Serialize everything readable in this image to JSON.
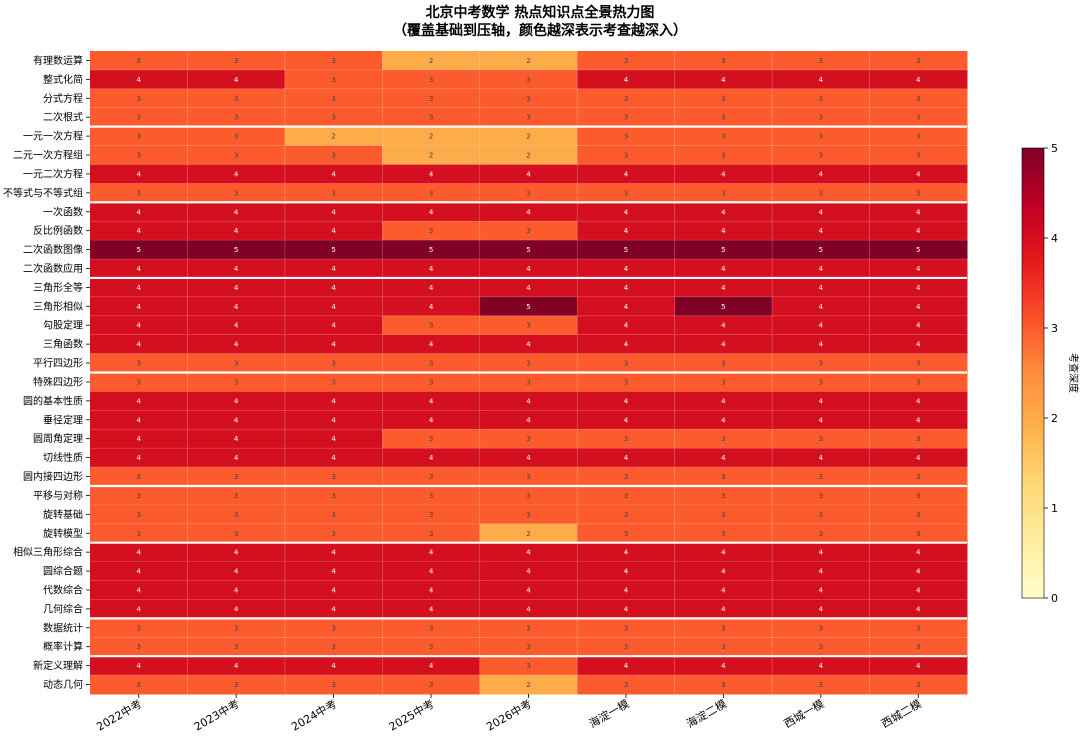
{
  "chart_data": {
    "type": "heatmap",
    "title": "北京中考数学 热点知识点全景热力图",
    "subtitle": "（覆盖基础到压轴，颜色越深表示考查越深入）",
    "colorbar_label": "考查深度",
    "value_range": [
      0,
      5
    ],
    "colorbar_ticks": [
      0,
      1,
      2,
      3,
      4,
      5
    ],
    "colormap": [
      "#ffffcc",
      "#ffeda0",
      "#fed976",
      "#feb24c",
      "#fd8d3c",
      "#fc4e2a",
      "#e31a1c",
      "#bd0026",
      "#800026"
    ],
    "columns": [
      "2022中考",
      "2023中考",
      "2024中考",
      "2025中考",
      "2026中考",
      "海淀一模",
      "海淀二模",
      "西城一模",
      "西城二模"
    ],
    "rows": [
      "有理数运算",
      "整式化简",
      "分式方程",
      "二次根式",
      "一元一次方程",
      "二元一次方程组",
      "一元二次方程",
      "不等式与不等式组",
      "一次函数",
      "反比例函数",
      "二次函数图像",
      "二次函数应用",
      "三角形全等",
      "三角形相似",
      "勾股定理",
      "三角函数",
      "平行四边形",
      "特殊四边形",
      "圆的基本性质",
      "垂径定理",
      "圆周角定理",
      "切线性质",
      "圆内接四边形",
      "平移与对称",
      "旋转基础",
      "旋转模型",
      "相似三角形综合",
      "圆综合题",
      "代数综合",
      "几何综合",
      "数据统计",
      "概率计算",
      "新定义理解",
      "动态几何"
    ],
    "group_separators_after_row": [
      3,
      7,
      11,
      16,
      22,
      25,
      29,
      31
    ],
    "values": [
      [
        3,
        3,
        3,
        2,
        2,
        3,
        3,
        3,
        3
      ],
      [
        4,
        4,
        3,
        3,
        3,
        4,
        4,
        4,
        4
      ],
      [
        3,
        3,
        3,
        3,
        3,
        3,
        3,
        3,
        3
      ],
      [
        3,
        3,
        3,
        3,
        3,
        3,
        3,
        3,
        3
      ],
      [
        3,
        3,
        2,
        2,
        2,
        3,
        3,
        3,
        3
      ],
      [
        3,
        3,
        3,
        2,
        2,
        3,
        3,
        3,
        3
      ],
      [
        4,
        4,
        4,
        4,
        4,
        4,
        4,
        4,
        4
      ],
      [
        3,
        3,
        3,
        3,
        3,
        3,
        3,
        3,
        3
      ],
      [
        4,
        4,
        4,
        4,
        4,
        4,
        4,
        4,
        4
      ],
      [
        4,
        4,
        4,
        3,
        3,
        4,
        4,
        4,
        4
      ],
      [
        5,
        5,
        5,
        5,
        5,
        5,
        5,
        5,
        5
      ],
      [
        4,
        4,
        4,
        4,
        4,
        4,
        4,
        4,
        4
      ],
      [
        4,
        4,
        4,
        4,
        4,
        4,
        4,
        4,
        4
      ],
      [
        4,
        4,
        4,
        4,
        5,
        4,
        5,
        4,
        4
      ],
      [
        4,
        4,
        4,
        3,
        3,
        4,
        4,
        4,
        4
      ],
      [
        4,
        4,
        4,
        4,
        4,
        4,
        4,
        4,
        4
      ],
      [
        3,
        3,
        3,
        3,
        3,
        3,
        3,
        3,
        3
      ],
      [
        3,
        3,
        3,
        3,
        3,
        3,
        3,
        3,
        3
      ],
      [
        4,
        4,
        4,
        4,
        4,
        4,
        4,
        4,
        4
      ],
      [
        4,
        4,
        4,
        4,
        4,
        4,
        4,
        4,
        4
      ],
      [
        4,
        4,
        4,
        3,
        3,
        3,
        3,
        3,
        3
      ],
      [
        4,
        4,
        4,
        4,
        4,
        4,
        4,
        4,
        4
      ],
      [
        3,
        3,
        3,
        3,
        3,
        3,
        3,
        3,
        3
      ],
      [
        3,
        3,
        3,
        3,
        3,
        3,
        3,
        3,
        3
      ],
      [
        3,
        3,
        3,
        3,
        3,
        3,
        3,
        3,
        3
      ],
      [
        3,
        3,
        3,
        3,
        2,
        3,
        3,
        3,
        3
      ],
      [
        4,
        4,
        4,
        4,
        4,
        4,
        4,
        4,
        4
      ],
      [
        4,
        4,
        4,
        4,
        4,
        4,
        4,
        4,
        4
      ],
      [
        4,
        4,
        4,
        4,
        4,
        4,
        4,
        4,
        4
      ],
      [
        4,
        4,
        4,
        4,
        4,
        4,
        4,
        4,
        4
      ],
      [
        3,
        3,
        3,
        3,
        3,
        3,
        3,
        3,
        3
      ],
      [
        3,
        3,
        3,
        3,
        3,
        3,
        3,
        3,
        3
      ],
      [
        4,
        4,
        4,
        4,
        3,
        4,
        4,
        4,
        4
      ],
      [
        3,
        3,
        3,
        3,
        2,
        3,
        3,
        3,
        3
      ]
    ]
  }
}
